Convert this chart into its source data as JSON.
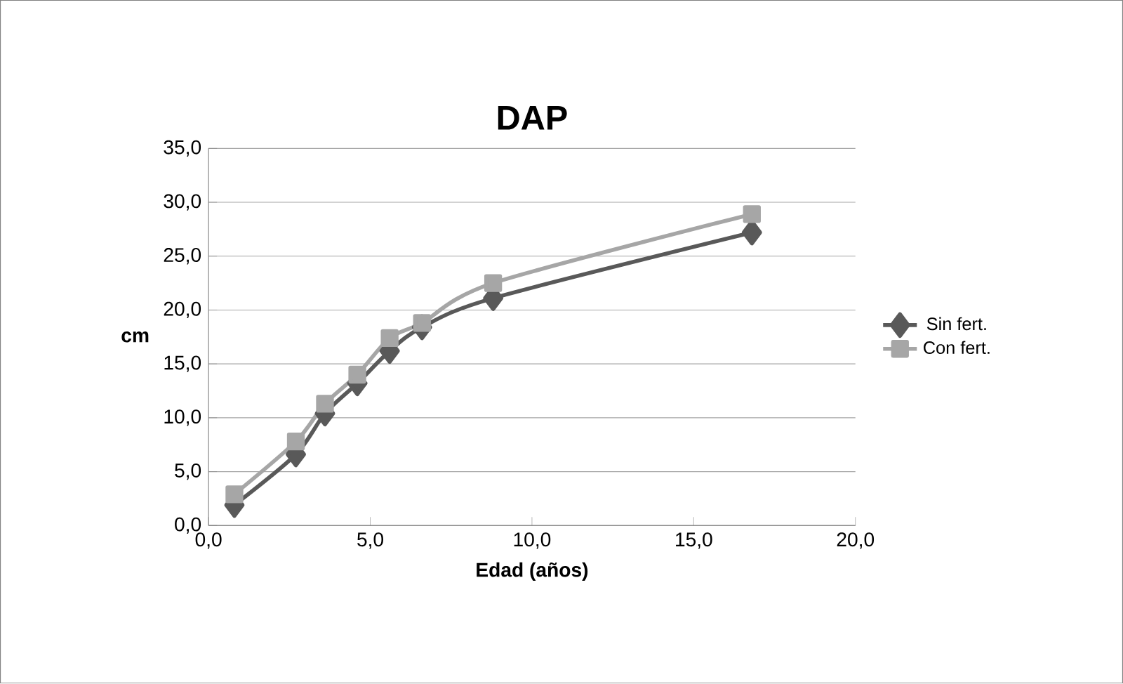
{
  "chart_data": {
    "type": "line",
    "title": "DAP",
    "xlabel": "Edad (años)",
    "ylabel": "cm",
    "xlim": [
      0,
      20
    ],
    "xticks": [
      {
        "value": 0,
        "label": "0,0"
      },
      {
        "value": 5,
        "label": "5,0"
      },
      {
        "value": 10,
        "label": "10,0"
      },
      {
        "value": 15,
        "label": "15,0"
      },
      {
        "value": 20,
        "label": "20,0"
      }
    ],
    "ylim": [
      0,
      35
    ],
    "yticks": [
      {
        "value": 0,
        "label": "0,0"
      },
      {
        "value": 5,
        "label": "5,0"
      },
      {
        "value": 10,
        "label": "10,0"
      },
      {
        "value": 15,
        "label": "15,0"
      },
      {
        "value": 20,
        "label": "20,0"
      },
      {
        "value": 25,
        "label": "25,0"
      },
      {
        "value": 30,
        "label": "30,0"
      },
      {
        "value": 35,
        "label": "35,0"
      }
    ],
    "x": [
      0.8,
      2.7,
      3.6,
      4.6,
      5.6,
      6.6,
      8.8,
      16.8
    ],
    "series": [
      {
        "name": "Sin fert.",
        "color": "#595959",
        "marker": "diamond",
        "values": [
          1.9,
          6.6,
          10.4,
          13.2,
          16.2,
          18.4,
          21.1,
          27.2
        ]
      },
      {
        "name": "Con fert.",
        "color": "#a6a6a6",
        "marker": "square",
        "values": [
          2.9,
          7.8,
          11.3,
          14.0,
          17.4,
          18.8,
          22.5,
          28.9
        ]
      }
    ],
    "grid": "y",
    "legend": "right",
    "line_style": "solid"
  }
}
